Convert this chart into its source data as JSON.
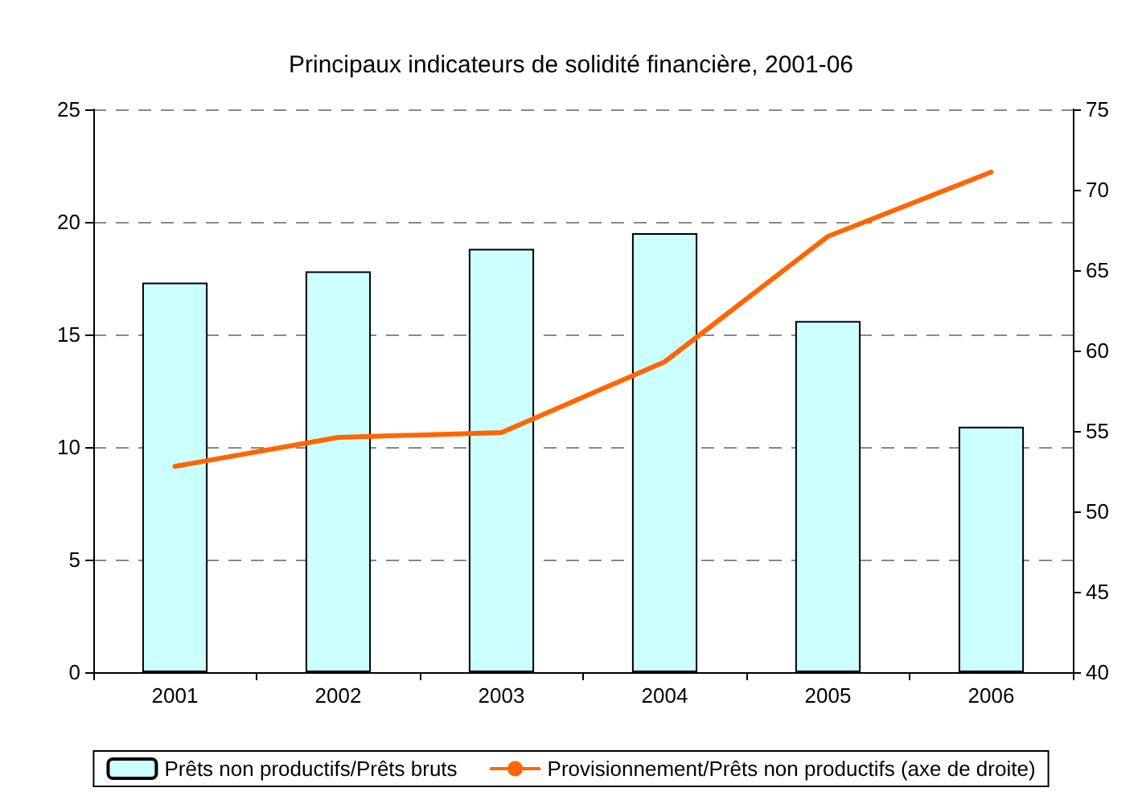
{
  "chart_data": {
    "type": "bar",
    "title": "Principaux indicateurs de solidité financière, 2001-06",
    "categories": [
      "2001",
      "2002",
      "2003",
      "2004",
      "2005",
      "2006"
    ],
    "series": [
      {
        "name": "Prêts non productifs/Prêts bruts",
        "color": "#ccffff",
        "values": [
          17.3,
          17.8,
          18.8,
          19.5,
          15.6,
          10.9
        ]
      },
      {
        "name": "Provisionnement/Prêts non productifs (axe de droite)",
        "type": "line",
        "axis": "y2",
        "color": "#ff6600",
        "marker": "none",
        "values": [
          52.8,
          54.6,
          54.9,
          59.3,
          67.1,
          71.1
        ]
      }
    ],
    "ylim": [
      0,
      25
    ],
    "yticks": [
      0,
      5,
      10,
      15,
      20,
      25
    ],
    "y2lim": [
      40,
      75
    ],
    "y2ticks": [
      40,
      45,
      50,
      55,
      60,
      65,
      70,
      75
    ],
    "grid": "y",
    "legend": "bottom"
  }
}
